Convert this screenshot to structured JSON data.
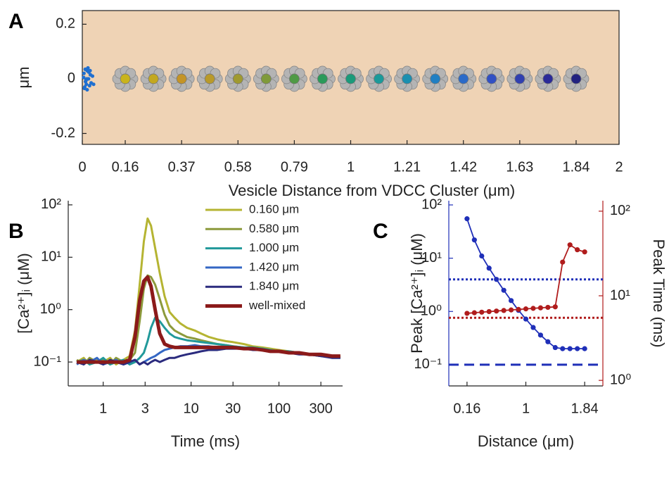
{
  "chart_data": [
    {
      "type": "scatter",
      "label": "A",
      "xlabel": "Vesicle Distance from VDCC Cluster (μm)",
      "ylabel": "μm",
      "xlim": [
        0,
        2
      ],
      "ylim": [
        -0.24,
        0.25
      ],
      "xticks": [
        0,
        0.16,
        0.37,
        0.58,
        0.79,
        1,
        1.21,
        1.42,
        1.63,
        1.84,
        2
      ],
      "yticks": [
        0.2,
        0,
        -0.2
      ],
      "background": "#efd3b5",
      "points": {
        "color": "#1f6fd0",
        "x": [
          0.006,
          0.012,
          0.018,
          0.009,
          0.023,
          0.015,
          0.03,
          0.027,
          0.005,
          0.038,
          0.018,
          0.011,
          0.033,
          0.024,
          0.014,
          0.042,
          0.021,
          0.008,
          0.029,
          0.017
        ],
        "y": [
          0.02,
          -0.01,
          0.03,
          -0.03,
          0.0,
          -0.02,
          0.015,
          -0.025,
          0.005,
          0.01,
          -0.04,
          0.035,
          -0.015,
          0.025,
          -0.005,
          -0.02,
          0.04,
          -0.035,
          0.03,
          0.0
        ]
      },
      "vesicles": {
        "x": [
          0.16,
          0.265,
          0.37,
          0.475,
          0.58,
          0.685,
          0.79,
          0.895,
          1,
          1.105,
          1.21,
          1.315,
          1.42,
          1.525,
          1.63,
          1.735,
          1.84
        ],
        "y": [
          0,
          0,
          0,
          0,
          0,
          0,
          0,
          0,
          0,
          0,
          0,
          0,
          0,
          0,
          0,
          0,
          0
        ],
        "colors": [
          "#c9b41c",
          "#c3a81f",
          "#c49426",
          "#b99a2a",
          "#a09a30",
          "#7f9a3a",
          "#4f9a45",
          "#2a9a5a",
          "#1a9a7a",
          "#1a9a9a",
          "#1a8fb0",
          "#1f7fc3",
          "#2a6ac8",
          "#3050c4",
          "#3040b0",
          "#2a2a98",
          "#222280"
        ],
        "petal_color": "#b4b4b4"
      }
    },
    {
      "type": "line",
      "label": "B",
      "xlabel": "Time (ms)",
      "ylabel": "[Ca²⁺]ᵢ (μM)",
      "xscale": "log",
      "yscale": "log",
      "xlim": [
        0.4,
        530
      ],
      "ylim": [
        0.035,
        120
      ],
      "xticks": [
        1,
        3,
        10,
        30,
        100,
        300
      ],
      "yticks": [
        {
          "value": 100,
          "label": "10²"
        },
        {
          "value": 10,
          "label": "10¹"
        },
        {
          "value": 1,
          "label": "10⁰"
        },
        {
          "value": 0.1,
          "label": "10⁻¹"
        }
      ],
      "legend": "upper right",
      "x": [
        0.5,
        0.6,
        0.7,
        0.85,
        1,
        1.2,
        1.4,
        1.7,
        2,
        2.3,
        2.6,
        2.9,
        3.2,
        3.5,
        3.9,
        4.4,
        5,
        5.7,
        6.5,
        7.5,
        9,
        11,
        13,
        16,
        20,
        25,
        30,
        40,
        50,
        65,
        80,
        100,
        130,
        170,
        220,
        300,
        400,
        500
      ],
      "series": [
        {
          "name": "0.160 μm",
          "color": "#b5b432",
          "width": 3,
          "values": [
            0.1,
            0.12,
            0.09,
            0.11,
            0.1,
            0.12,
            0.09,
            0.11,
            0.13,
            0.4,
            3,
            20,
            55,
            40,
            15,
            5,
            1.8,
            0.9,
            0.7,
            0.55,
            0.45,
            0.4,
            0.35,
            0.3,
            0.27,
            0.25,
            0.24,
            0.22,
            0.2,
            0.19,
            0.18,
            0.17,
            0.16,
            0.15,
            0.14,
            0.14,
            0.13,
            0.13
          ]
        },
        {
          "name": "0.580 μm",
          "color": "#8c9a3c",
          "width": 3,
          "values": [
            0.11,
            0.09,
            0.12,
            0.1,
            0.11,
            0.09,
            0.12,
            0.1,
            0.11,
            0.15,
            0.6,
            2.5,
            4.5,
            4.2,
            3,
            1.6,
            0.8,
            0.5,
            0.4,
            0.35,
            0.3,
            0.28,
            0.26,
            0.24,
            0.22,
            0.21,
            0.2,
            0.19,
            0.18,
            0.17,
            0.17,
            0.16,
            0.15,
            0.15,
            0.14,
            0.13,
            0.13,
            0.12
          ]
        },
        {
          "name": "1.000 μm",
          "color": "#21999a",
          "width": 3,
          "values": [
            0.1,
            0.11,
            0.09,
            0.1,
            0.12,
            0.09,
            0.1,
            0.11,
            0.09,
            0.1,
            0.12,
            0.15,
            0.25,
            0.45,
            0.7,
            0.6,
            0.45,
            0.35,
            0.3,
            0.28,
            0.26,
            0.25,
            0.24,
            0.23,
            0.22,
            0.21,
            0.2,
            0.19,
            0.19,
            0.18,
            0.17,
            0.16,
            0.16,
            0.15,
            0.14,
            0.14,
            0.13,
            0.12
          ]
        },
        {
          "name": "1.420 μm",
          "color": "#3467c4",
          "width": 3,
          "values": [
            0.09,
            0.11,
            0.1,
            0.12,
            0.09,
            0.1,
            0.11,
            0.09,
            0.1,
            0.11,
            0.09,
            0.1,
            0.11,
            0.12,
            0.13,
            0.15,
            0.17,
            0.18,
            0.19,
            0.2,
            0.2,
            0.21,
            0.2,
            0.2,
            0.19,
            0.19,
            0.19,
            0.18,
            0.18,
            0.17,
            0.16,
            0.16,
            0.15,
            0.15,
            0.14,
            0.13,
            0.13,
            0.12
          ]
        },
        {
          "name": "1.840 μm",
          "color": "#2b2b7e",
          "width": 3,
          "values": [
            0.1,
            0.09,
            0.11,
            0.1,
            0.09,
            0.11,
            0.1,
            0.09,
            0.1,
            0.11,
            0.09,
            0.1,
            0.09,
            0.1,
            0.11,
            0.1,
            0.11,
            0.12,
            0.12,
            0.13,
            0.14,
            0.15,
            0.16,
            0.17,
            0.17,
            0.18,
            0.18,
            0.18,
            0.17,
            0.17,
            0.16,
            0.16,
            0.15,
            0.14,
            0.14,
            0.13,
            0.12,
            0.12
          ]
        },
        {
          "name": "well-mixed",
          "color": "#8b1a1a",
          "width": 5,
          "values": [
            0.1,
            0.1,
            0.1,
            0.1,
            0.1,
            0.1,
            0.1,
            0.1,
            0.11,
            0.3,
            1.5,
            3.5,
            4.2,
            2.8,
            1,
            0.35,
            0.22,
            0.2,
            0.19,
            0.19,
            0.19,
            0.19,
            0.19,
            0.19,
            0.19,
            0.19,
            0.19,
            0.18,
            0.18,
            0.17,
            0.16,
            0.16,
            0.15,
            0.15,
            0.14,
            0.14,
            0.13,
            0.13
          ]
        }
      ]
    },
    {
      "type": "line",
      "label": "C",
      "xlabel": "Distance (μm)",
      "ylabel": "Peak [Ca²⁺]ᵢ (μM)",
      "y2label": "Peak Time (ms)",
      "xlim": [
        -0.1,
        2.1
      ],
      "xticks": [
        0.16,
        1,
        1.84
      ],
      "yscale": "log",
      "ylim": [
        0.04,
        120
      ],
      "yticks": [
        {
          "value": 100,
          "label": "10²"
        },
        {
          "value": 10,
          "label": "10¹"
        },
        {
          "value": 1,
          "label": "10⁰"
        },
        {
          "value": 0.1,
          "label": "10⁻¹"
        }
      ],
      "y2scale": "log",
      "y2lim": [
        0.86,
        133
      ],
      "y2ticks": [
        {
          "value": 100,
          "label": "10²"
        },
        {
          "value": 10,
          "label": "10¹"
        },
        {
          "value": 1,
          "label": "10⁰"
        }
      ],
      "x": [
        0.16,
        0.265,
        0.37,
        0.475,
        0.58,
        0.685,
        0.79,
        0.895,
        1,
        1.105,
        1.21,
        1.315,
        1.42,
        1.525,
        1.63,
        1.735,
        1.84
      ],
      "series": [
        {
          "color": "#1f2fb8",
          "axis": "y",
          "markers": true,
          "values": [
            55,
            22,
            11,
            6.5,
            4,
            2.5,
            1.6,
            1.05,
            0.72,
            0.5,
            0.36,
            0.27,
            0.21,
            0.2,
            0.2,
            0.2,
            0.2
          ]
        },
        {
          "color": "#b01c1c",
          "axis": "y2",
          "markers": true,
          "values": [
            6.2,
            6.3,
            6.4,
            6.5,
            6.6,
            6.7,
            6.8,
            6.9,
            7.0,
            7.1,
            7.2,
            7.3,
            7.4,
            25,
            40,
            35,
            33
          ]
        }
      ],
      "reference_lines": [
        {
          "value": 4,
          "axis": "y",
          "color": "#1f2fb8",
          "dash": "dotted"
        },
        {
          "value": 5.5,
          "axis": "y2",
          "color": "#b01c1c",
          "dash": "dotted"
        },
        {
          "value": 0.1,
          "axis": "y",
          "color": "#1f2fb8",
          "dash": "dashed"
        }
      ]
    }
  ]
}
